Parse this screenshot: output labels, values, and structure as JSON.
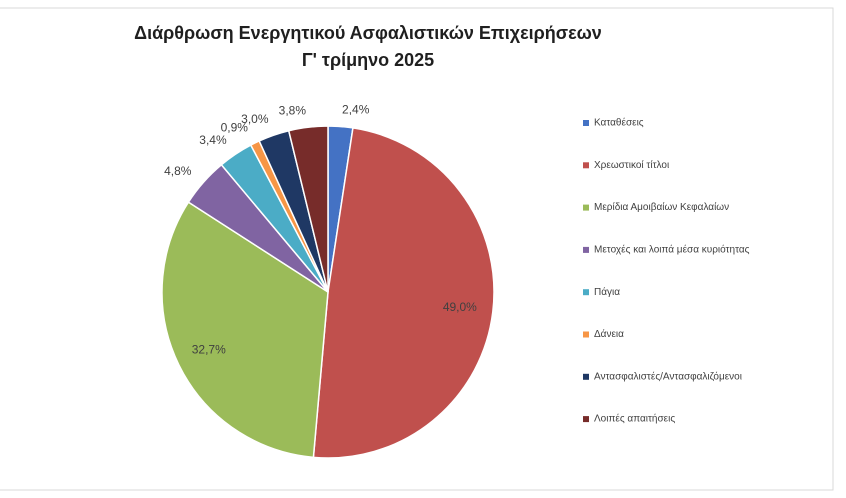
{
  "chart_data": {
    "type": "pie",
    "title": "Διάρθρωση Ενεργητικού Ασφαλιστικών Επιχειρήσεων",
    "subtitle": "Γ' τρίμηνο 2025",
    "categories": [
      "Καταθέσεις",
      "Χρεωστικοί τίτλοι",
      "Μερίδια Αμοιβαίων Κεφαλαίων",
      "Μετοχές και λοιπά μέσα κυριότητας",
      "Πάγια",
      "Δάνεια",
      "Αντασφαλιστές/Αντασφαλιζόμενοι",
      "Λοιπές απαιτήσεις"
    ],
    "values": [
      2.4,
      49.0,
      32.7,
      4.8,
      3.4,
      0.9,
      3.0,
      3.8
    ],
    "value_labels": [
      "2,4%",
      "49,0%",
      "32,7%",
      "4,8%",
      "3,4%",
      "0,9%",
      "3,0%",
      "3,8%"
    ],
    "colors": [
      "#4472c4",
      "#c0504d",
      "#9bbb59",
      "#8064a2",
      "#4bacc6",
      "#f79646",
      "#1f3864",
      "#772c2a"
    ],
    "legend": "right"
  }
}
